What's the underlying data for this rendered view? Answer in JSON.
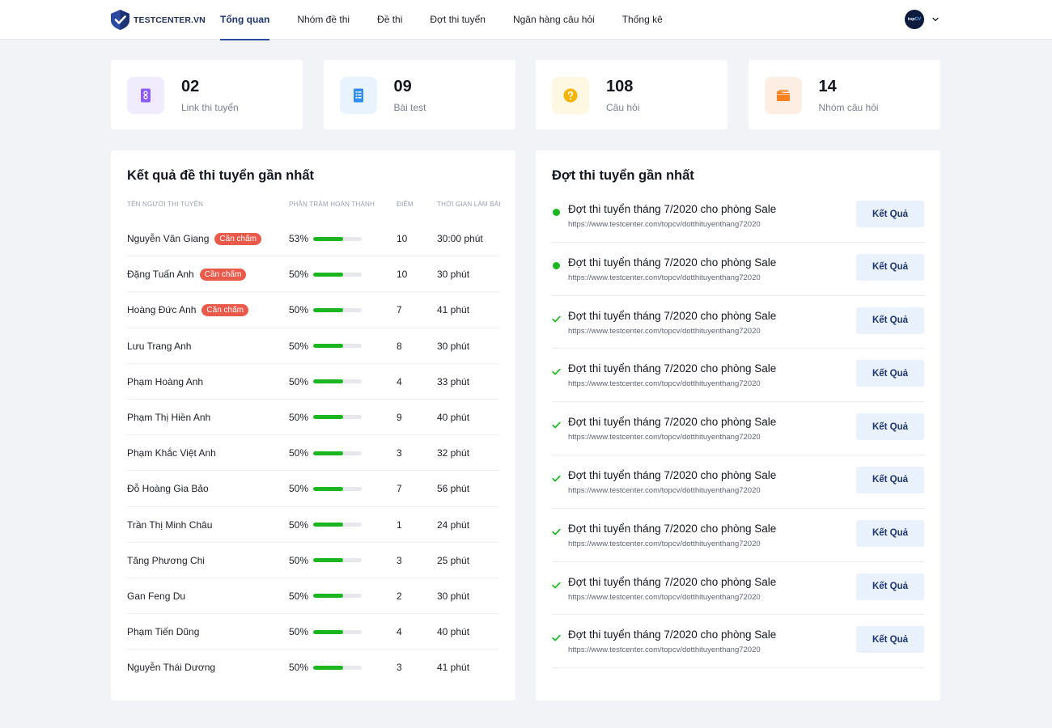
{
  "header": {
    "logo_text": "TESTCENTER.VN",
    "nav": [
      {
        "label": "Tổng quan",
        "active": true
      },
      {
        "label": "Nhóm đề thi",
        "active": false
      },
      {
        "label": "Đề thi",
        "active": false
      },
      {
        "label": "Đợt thi tuyển",
        "active": false
      },
      {
        "label": "Ngân hàng câu hỏi",
        "active": false
      },
      {
        "label": "Thống kê",
        "active": false
      }
    ],
    "avatar_text_1": "top",
    "avatar_text_2": "CV"
  },
  "stats": [
    {
      "value": "02",
      "label": "Link thi tuyển",
      "icon": "link-document-icon",
      "color": "#8b5cf6",
      "bg": "#f1ecfd"
    },
    {
      "value": "09",
      "label": "Bài test",
      "icon": "test-list-icon",
      "color": "#2f8cf0",
      "bg": "#e8f3fe"
    },
    {
      "value": "108",
      "label": "Câu hỏi",
      "icon": "question-icon",
      "color": "#f5b400",
      "bg": "#fef7e2"
    },
    {
      "value": "14",
      "label": "Nhóm câu hỏi",
      "icon": "folder-icon",
      "color": "#f5821f",
      "bg": "#fdeee4"
    }
  ],
  "results": {
    "title": "Kết quả đề thi tuyển gần nhất",
    "columns": [
      "TÊN NGƯỜI THI TUYỂN",
      "PHẦN TRĂM HOÀN THÀNH",
      "ĐIỂM",
      "THỜI GIAN LÀM BÀI"
    ],
    "badge_label": "Cần chấm",
    "rows": [
      {
        "name": "Nguyễn Văn Giang",
        "badge": true,
        "percent": "53%",
        "progress": 0.62,
        "score": "10",
        "time": "30:00 phút"
      },
      {
        "name": "Đặng Tuấn Anh",
        "badge": true,
        "percent": "50%",
        "progress": 0.62,
        "score": "10",
        "time": "30 phút"
      },
      {
        "name": "Hoàng Đức Anh",
        "badge": true,
        "percent": "50%",
        "progress": 0.62,
        "score": "7",
        "time": "41 phút"
      },
      {
        "name": "Lưu Trang Anh",
        "badge": false,
        "percent": "50%",
        "progress": 0.62,
        "score": "8",
        "time": "30 phút"
      },
      {
        "name": "Phạm Hoàng Anh",
        "badge": false,
        "percent": "50%",
        "progress": 0.62,
        "score": "4",
        "time": "33 phút"
      },
      {
        "name": "Phạm Thị Hiền Anh",
        "badge": false,
        "percent": "50%",
        "progress": 0.62,
        "score": "9",
        "time": "40 phút"
      },
      {
        "name": "Phạm Khắc Việt Anh",
        "badge": false,
        "percent": "50%",
        "progress": 0.62,
        "score": "3",
        "time": "32 phút"
      },
      {
        "name": "Đỗ Hoàng Gia Bảo",
        "badge": false,
        "percent": "50%",
        "progress": 0.62,
        "score": "7",
        "time": "56 phút"
      },
      {
        "name": "Trần Thị Minh Châu",
        "badge": false,
        "percent": "50%",
        "progress": 0.62,
        "score": "1",
        "time": "24 phút"
      },
      {
        "name": "Tăng Phương Chi",
        "badge": false,
        "percent": "50%",
        "progress": 0.62,
        "score": "3",
        "time": "25 phút"
      },
      {
        "name": "Gan Feng Du",
        "badge": false,
        "percent": "50%",
        "progress": 0.62,
        "score": "2",
        "time": "30 phút"
      },
      {
        "name": "Phạm Tiến Dũng",
        "badge": false,
        "percent": "50%",
        "progress": 0.62,
        "score": "4",
        "time": "40 phút"
      },
      {
        "name": "Nguyễn Thái Dương",
        "badge": false,
        "percent": "50%",
        "progress": 0.62,
        "score": "3",
        "time": "41 phút"
      }
    ]
  },
  "campaigns": {
    "title": "Đợt thi tuyển gần nhất",
    "button_label": "Kết Quả",
    "items": [
      {
        "status": "active",
        "title": "Đợt thi tuyển tháng 7/2020  cho phòng Sale",
        "url": "https://www.testcenter.com/topcv/dotthituyenthang72020"
      },
      {
        "status": "active",
        "title": "Đợt thi tuyển tháng 7/2020  cho phòng Sale",
        "url": "https://www.testcenter.com/topcv/dotthituyenthang72020"
      },
      {
        "status": "done",
        "title": "Đợt thi tuyển tháng 7/2020  cho phòng Sale",
        "url": "https://www.testcenter.com/topcv/dotthituyenthang72020"
      },
      {
        "status": "done",
        "title": "Đợt thi tuyển tháng 7/2020  cho phòng Sale",
        "url": "https://www.testcenter.com/topcv/dotthituyenthang72020"
      },
      {
        "status": "done",
        "title": "Đợt thi tuyển tháng 7/2020  cho phòng Sale",
        "url": "https://www.testcenter.com/topcv/dotthituyenthang72020"
      },
      {
        "status": "done",
        "title": "Đợt thi tuyển tháng 7/2020  cho phòng Sale",
        "url": "https://www.testcenter.com/topcv/dotthituyenthang72020"
      },
      {
        "status": "done",
        "title": "Đợt thi tuyển tháng 7/2020  cho phòng Sale",
        "url": "https://www.testcenter.com/topcv/dotthituyenthang72020"
      },
      {
        "status": "done",
        "title": "Đợt thi tuyển tháng 7/2020  cho phòng Sale",
        "url": "https://www.testcenter.com/topcv/dotthituyenthang72020"
      },
      {
        "status": "done",
        "title": "Đợt thi tuyển tháng 7/2020  cho phòng Sale",
        "url": "https://www.testcenter.com/topcv/dotthituyenthang72020"
      }
    ]
  }
}
